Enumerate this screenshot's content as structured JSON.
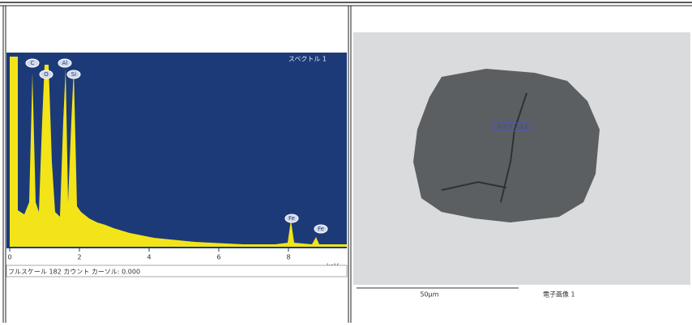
{
  "spectrum": {
    "title": "スペクトル 1",
    "peaks": [
      "C",
      "O",
      "Al",
      "Si",
      "Fe",
      "Fe"
    ],
    "axis_ticks": [
      "0",
      "2",
      "4",
      "6",
      "8"
    ],
    "unit": "keV",
    "footer": "フルスケール 182 カウント カーソル: 0.000"
  },
  "image": {
    "marker": "スペクトル1",
    "scale": "50µm",
    "caption": "電子画像 1"
  }
}
